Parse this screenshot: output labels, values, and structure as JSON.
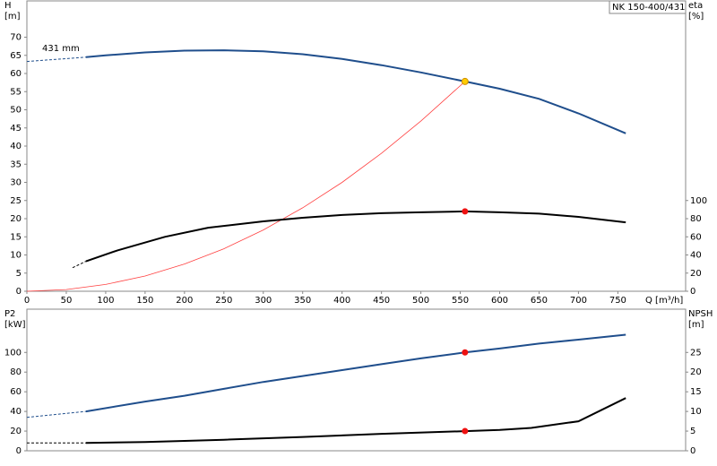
{
  "chart_data": [
    {
      "type": "line",
      "title": "NK 150-400/431",
      "y_label": [
        "H",
        "[m]"
      ],
      "y2_label": [
        "eta",
        "[%]"
      ],
      "x_label": "Q [m³/h]",
      "annotation": "431 mm",
      "xlim": [
        0,
        836
      ],
      "xticks": [
        0,
        50,
        100,
        150,
        200,
        250,
        300,
        350,
        400,
        450,
        500,
        550,
        600,
        650,
        700,
        750
      ],
      "ylim": [
        0,
        80
      ],
      "yticks": [
        0,
        5,
        10,
        15,
        20,
        25,
        30,
        35,
        40,
        45,
        50,
        55,
        60,
        65,
        70
      ],
      "y2lim": [
        0,
        320
      ],
      "y2ticks": [
        0,
        20,
        40,
        60,
        80,
        100
      ],
      "series": [
        {
          "color": "#1f4e8c",
          "dash": true,
          "x": [
            0,
            75
          ],
          "values": [
            63.3,
            64.5
          ]
        },
        {
          "color": "#1f4e8c",
          "dash": false,
          "x": [
            75,
            100,
            150,
            200,
            250,
            300,
            350,
            400,
            450,
            500,
            556,
            600,
            650,
            700,
            760
          ],
          "values": [
            64.5,
            65,
            65.8,
            66.3,
            66.4,
            66.1,
            65.3,
            64,
            62.3,
            60.3,
            57.8,
            55.8,
            53,
            49,
            43.5
          ]
        },
        {
          "color": "#ff4040",
          "dash": false,
          "thin": true,
          "x": [
            0,
            50,
            100,
            150,
            200,
            250,
            300,
            350,
            400,
            450,
            500,
            556
          ],
          "values": [
            0,
            0.47,
            1.88,
            4.2,
            7.5,
            11.7,
            16.9,
            23,
            30,
            38,
            46.9,
            57.8
          ]
        },
        {
          "color": "#000000",
          "dash": true,
          "axis": "y2",
          "x": [
            58,
            75
          ],
          "values": [
            26,
            33
          ]
        },
        {
          "color": "#000000",
          "dash": false,
          "axis": "y2",
          "x": [
            75,
            115,
            175,
            230,
            300,
            350,
            400,
            450,
            500,
            556,
            600,
            650,
            700,
            760
          ],
          "values": [
            33,
            45,
            60,
            70,
            77,
            81,
            84,
            86,
            87,
            88,
            87,
            85.5,
            82,
            76
          ]
        }
      ],
      "points": [
        {
          "x": 556,
          "y": 57.8,
          "color": "#ffcc00"
        },
        {
          "x": 556,
          "y": 88,
          "axis": "y2",
          "color": "#ee1111"
        }
      ]
    },
    {
      "type": "line",
      "y_label": [
        "P2",
        "[kW]"
      ],
      "y2_label": [
        "NPSH",
        "[m]"
      ],
      "xlim": [
        0,
        836
      ],
      "ylim": [
        0,
        144
      ],
      "yticks": [
        0,
        20,
        40,
        60,
        80,
        100
      ],
      "y2lim": [
        0,
        36
      ],
      "y2ticks": [
        0,
        5,
        10,
        15,
        20,
        25
      ],
      "series": [
        {
          "color": "#1f4e8c",
          "dash": true,
          "x": [
            0,
            75
          ],
          "values": [
            34,
            40
          ]
        },
        {
          "color": "#1f4e8c",
          "dash": false,
          "x": [
            75,
            150,
            200,
            250,
            300,
            350,
            400,
            450,
            500,
            556,
            600,
            650,
            700,
            760
          ],
          "values": [
            40,
            50,
            56,
            63,
            70,
            76,
            82,
            88,
            94,
            100,
            104,
            109,
            113,
            118
          ]
        },
        {
          "color": "#000000",
          "dash": true,
          "axis": "y2",
          "x": [
            0,
            75
          ],
          "values": [
            2,
            2
          ]
        },
        {
          "color": "#000000",
          "dash": false,
          "axis": "y2",
          "x": [
            75,
            150,
            250,
            350,
            450,
            556,
            600,
            640,
            700,
            760
          ],
          "values": [
            2,
            2.2,
            2.8,
            3.5,
            4.3,
            5,
            5.3,
            5.8,
            7.5,
            13.4
          ]
        }
      ],
      "points": [
        {
          "x": 556,
          "y": 100,
          "color": "#ee1111"
        },
        {
          "x": 556,
          "y": 5,
          "axis": "y2",
          "color": "#ee1111"
        }
      ]
    }
  ]
}
